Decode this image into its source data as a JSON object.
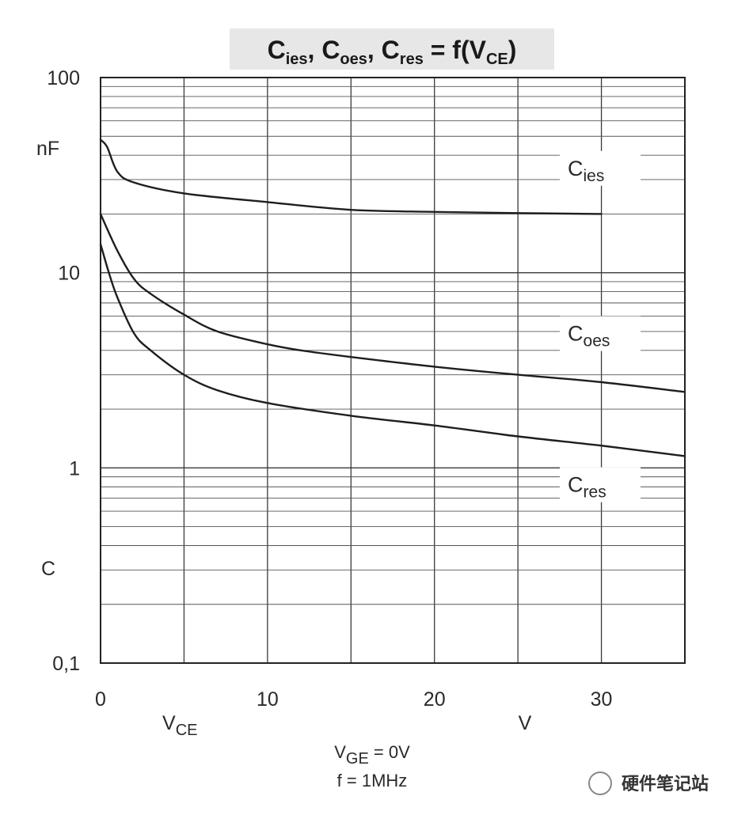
{
  "chart_data": {
    "type": "line",
    "title": {
      "parts": [
        {
          "main": "C",
          "sub": "ies"
        },
        {
          "main": ", C",
          "sub": "oes"
        },
        {
          "main": ", C",
          "sub": "res"
        },
        {
          "main": " = f(V",
          "sub": "CE"
        },
        {
          "main": ")",
          "sub": ""
        }
      ]
    },
    "x_scale": "linear",
    "y_scale": "log",
    "xlim": [
      0,
      35
    ],
    "ylim": [
      0.1,
      100
    ],
    "x_ticks": [
      {
        "value": 0,
        "label": "0"
      },
      {
        "value": 10,
        "label": "10"
      },
      {
        "value": 20,
        "label": "20"
      },
      {
        "value": 30,
        "label": "30"
      }
    ],
    "y_ticks": [
      {
        "value": 100,
        "label": "100"
      },
      {
        "value": 10,
        "label": "10"
      },
      {
        "value": 1,
        "label": "1"
      },
      {
        "value": 0.1,
        "label": "0,1"
      }
    ],
    "y_unit": "nF",
    "y_axis_label": "C",
    "x_axis_label": {
      "main": "V",
      "sub": "CE"
    },
    "x_unit": "V",
    "grid": true,
    "conditions": [
      {
        "main": "V",
        "sub": "GE",
        "rest": " = 0V"
      },
      {
        "main": "f = 1MHz",
        "sub": "",
        "rest": ""
      }
    ],
    "series": [
      {
        "name": {
          "main": "C",
          "sub": "ies"
        },
        "label_at": [
          29.5,
          33
        ],
        "points": [
          [
            0,
            48
          ],
          [
            0.4,
            44
          ],
          [
            1,
            33
          ],
          [
            2,
            29
          ],
          [
            5,
            25.5
          ],
          [
            10,
            23
          ],
          [
            15,
            21
          ],
          [
            20,
            20.5
          ],
          [
            25,
            20.2
          ],
          [
            30,
            20
          ]
        ]
      },
      {
        "name": {
          "main": "C",
          "sub": "oes"
        },
        "label_at": [
          29.5,
          4.7
        ],
        "points": [
          [
            0,
            20
          ],
          [
            1,
            13
          ],
          [
            2,
            9.3
          ],
          [
            3,
            7.8
          ],
          [
            5,
            6.1
          ],
          [
            7,
            5
          ],
          [
            10,
            4.3
          ],
          [
            12,
            4.0
          ],
          [
            15,
            3.7
          ],
          [
            20,
            3.3
          ],
          [
            25,
            3.0
          ],
          [
            30,
            2.75
          ],
          [
            35,
            2.45
          ]
        ]
      },
      {
        "name": {
          "main": "C",
          "sub": "res"
        },
        "label_at": [
          29.5,
          0.79
        ],
        "points": [
          [
            0,
            14
          ],
          [
            0.5,
            10
          ],
          [
            1,
            7.5
          ],
          [
            2,
            4.9
          ],
          [
            3,
            4.0
          ],
          [
            5,
            3.0
          ],
          [
            7,
            2.5
          ],
          [
            10,
            2.15
          ],
          [
            15,
            1.85
          ],
          [
            20,
            1.65
          ],
          [
            25,
            1.45
          ],
          [
            30,
            1.3
          ],
          [
            35,
            1.15
          ]
        ]
      }
    ]
  },
  "watermark": "硬件笔记站"
}
